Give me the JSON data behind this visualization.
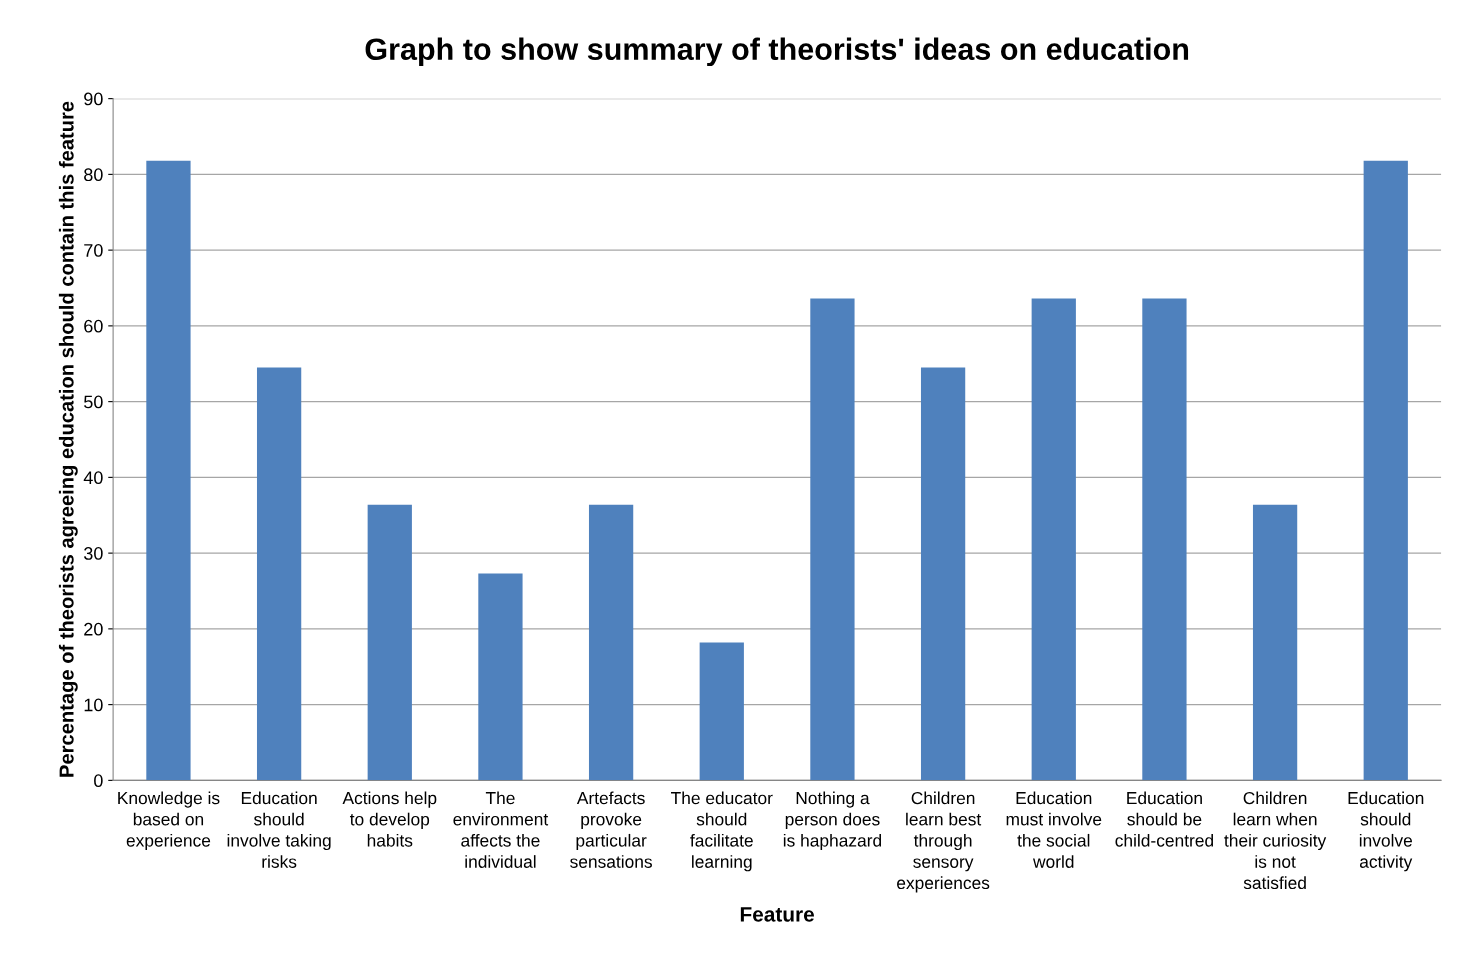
{
  "chart_data": {
    "type": "bar",
    "title": "Graph to show summary of theorists' ideas on education",
    "xlabel": "Feature",
    "ylabel": "Percentage of theorists agreeing education should contain this feature",
    "categories": [
      "Knowledge is\nbased on\nexperience",
      "Education\nshould\ninvolve taking\nrisks",
      "Actions help\nto develop\nhabits",
      "The\nenvironment\naffects the\nindividual",
      "Artefacts\nprovoke\nparticular\nsensations",
      "The educator\nshould\nfacilitate\nlearning",
      "Nothing a\nperson does\nis haphazard",
      "Children\nlearn best\nthrough\nsensory\nexperiences",
      "Education\nmust involve\nthe social\nworld",
      "Education\nshould be\nchild-centred",
      "Children\nlearn when\ntheir curiosity\nis not\nsatisfied",
      "Education\nshould\ninvolve\nactivity"
    ],
    "values": [
      81.8,
      54.5,
      36.4,
      27.3,
      36.4,
      18.2,
      63.6,
      54.5,
      63.6,
      63.6,
      36.4,
      81.8
    ],
    "color": "#4f81bd",
    "ylim": [
      0,
      90
    ],
    "yticks": [
      0,
      10,
      20,
      30,
      40,
      50,
      60,
      70,
      80,
      90
    ],
    "grid": "y"
  }
}
